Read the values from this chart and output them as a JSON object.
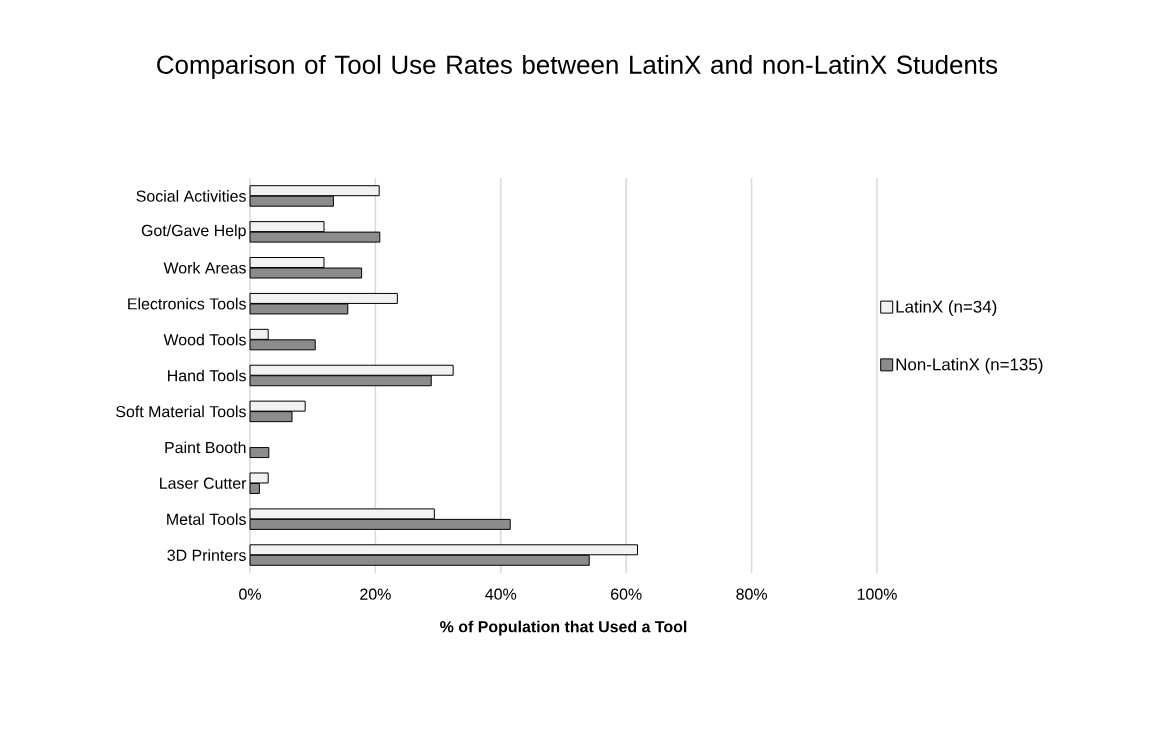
{
  "chart_data": {
    "type": "bar",
    "orientation": "horizontal",
    "title": "Comparison of Tool Use Rates between LatinX and non-LatinX Students",
    "xlabel": "**% of Population that Used a Tool**",
    "categories": [
      "Social Activities",
      "Got/Gave Help",
      "Work Areas",
      "Electronics Tools",
      "Wood Tools",
      "Hand Tools",
      "Soft Material Tools",
      "Paint Booth",
      "Laser Cutter",
      "Metal Tools",
      "3D Printers"
    ],
    "series": [
      {
        "name": "LatinX (n=34)",
        "color": "#f2f2f2",
        "values": [
          20.6,
          11.8,
          11.8,
          23.5,
          2.9,
          32.4,
          8.8,
          null,
          2.9,
          29.4,
          61.8
        ]
      },
      {
        "name": "Non-LatinX (n=135)",
        "color": "#8c8c8c",
        "values": [
          13.3,
          20.7,
          17.8,
          15.6,
          10.4,
          28.9,
          6.7,
          3.0,
          1.5,
          41.5,
          54.1
        ]
      }
    ],
    "xlim": [
      0,
      100
    ],
    "xticks": [
      {
        "value": 0,
        "label": "0%"
      },
      {
        "value": 20,
        "label": "20%"
      },
      {
        "value": 40,
        "label": "40%"
      },
      {
        "value": 60,
        "label": "60%"
      },
      {
        "value": 80,
        "label": "80%"
      },
      {
        "value": 100,
        "label": "100%"
      }
    ],
    "grid": "x",
    "legend": "right"
  }
}
